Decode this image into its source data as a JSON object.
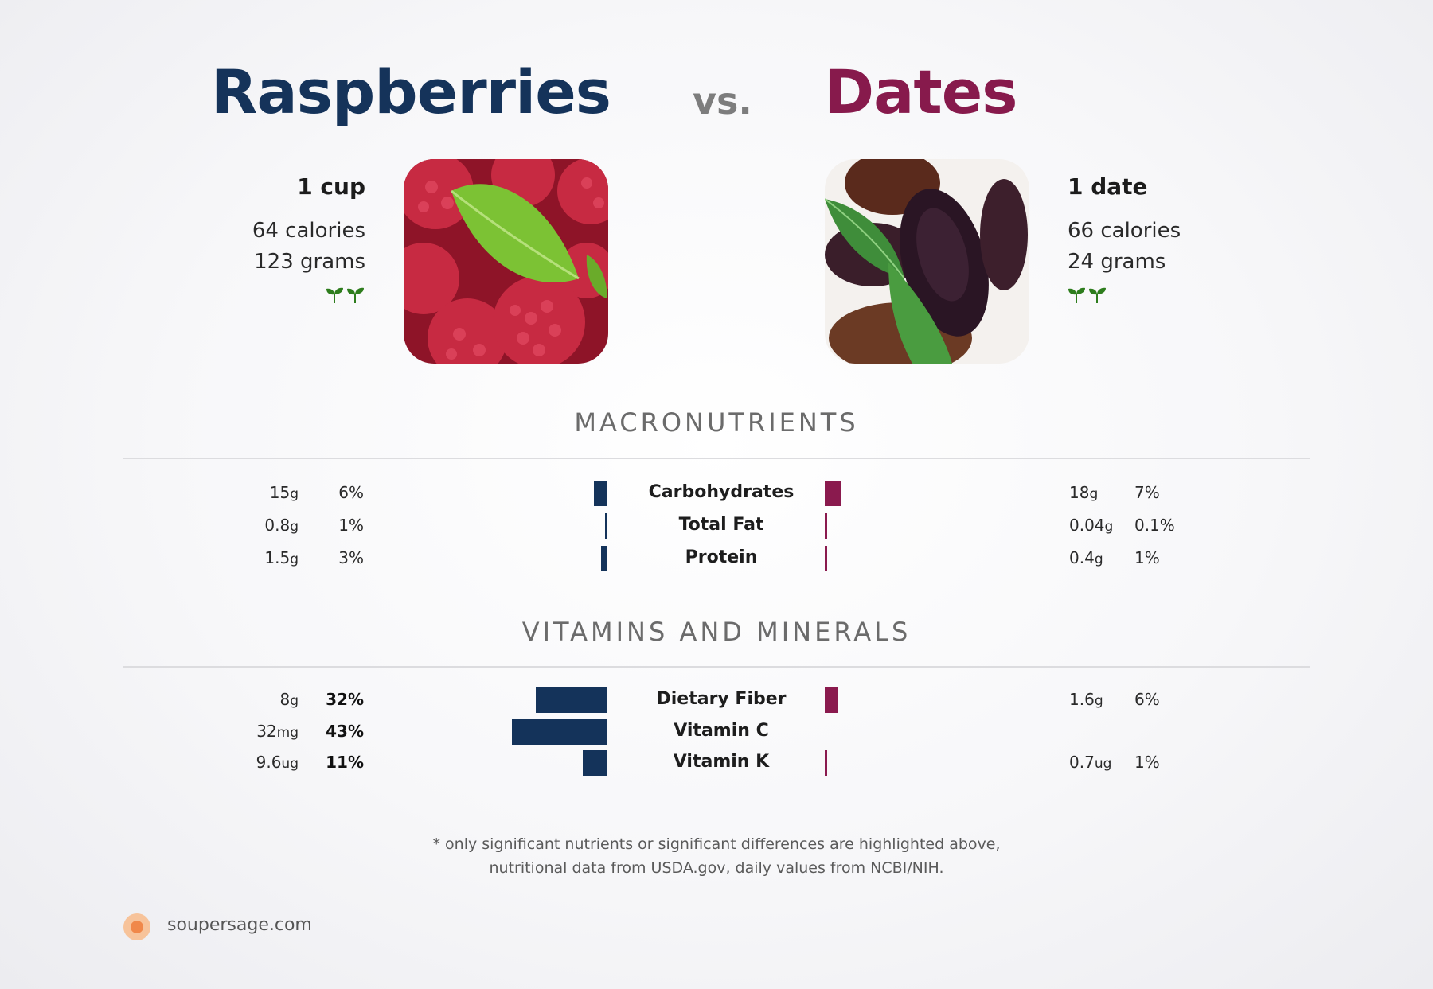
{
  "header": {
    "left_title": "Raspberries",
    "vs": "vs.",
    "right_title": "Dates",
    "left_color": "#15335a",
    "right_color": "#871a4c"
  },
  "left_food": {
    "serving": "1 cup",
    "calories": "64 calories",
    "grams": "123 grams",
    "icon": "sprout-icon",
    "image": "raspberries-photo"
  },
  "right_food": {
    "serving": "1 date",
    "calories": "66 calories",
    "grams": "24 grams",
    "icon": "sprout-icon",
    "image": "dates-photo"
  },
  "sections": {
    "macros_title": "MACRONUTRIENTS",
    "vitamins_title": "VITAMINS AND MINERALS"
  },
  "chart_data": [
    {
      "type": "bar",
      "title": "MACRONUTRIENTS",
      "categories": [
        "Carbohydrates",
        "Total Fat",
        "Protein"
      ],
      "series": [
        {
          "name": "Raspberries",
          "amounts": [
            "15",
            "0.8",
            "1.5"
          ],
          "units": [
            "g",
            "g",
            "g"
          ],
          "percents": [
            "6%",
            "1%",
            "3%"
          ],
          "values": [
            6,
            1,
            3
          ],
          "bold": [
            false,
            false,
            false
          ]
        },
        {
          "name": "Dates",
          "amounts": [
            "18",
            "0.04",
            "0.4"
          ],
          "units": [
            "g",
            "g",
            "g"
          ],
          "percents": [
            "7%",
            "0.1%",
            "1%"
          ],
          "values": [
            7,
            0.1,
            1
          ],
          "bold": [
            false,
            false,
            false
          ]
        }
      ]
    },
    {
      "type": "bar",
      "title": "VITAMINS AND MINERALS",
      "categories": [
        "Dietary Fiber",
        "Vitamin C",
        "Vitamin K"
      ],
      "series": [
        {
          "name": "Raspberries",
          "amounts": [
            "8",
            "32",
            "9.6"
          ],
          "units": [
            "g",
            "mg",
            "ug"
          ],
          "percents": [
            "32%",
            "43%",
            "11%"
          ],
          "values": [
            32,
            43,
            11
          ],
          "bold": [
            true,
            true,
            true
          ]
        },
        {
          "name": "Dates",
          "amounts": [
            "1.6",
            "",
            "0.7"
          ],
          "units": [
            "g",
            "",
            "ug"
          ],
          "percents": [
            "6%",
            "",
            "1%"
          ],
          "values": [
            6,
            0,
            1
          ],
          "bold": [
            false,
            false,
            false
          ]
        }
      ]
    }
  ],
  "footer": {
    "note_line1": "* only significant nutrients or significant differences are highlighted above,",
    "note_line2": "nutritional data from USDA.gov, daily values from NCBI/NIH.",
    "brand": "soupersage.com",
    "brand_icon": "soupersage-logo-icon"
  }
}
